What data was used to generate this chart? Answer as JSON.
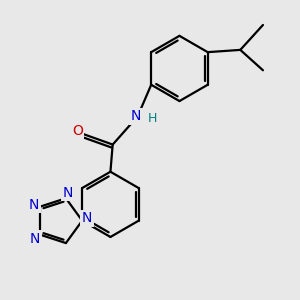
{
  "background_color": "#e8e8e8",
  "bond_color": "#000000",
  "bond_width": 1.6,
  "atom_colors": {
    "N_amide": "#0000cc",
    "N_tetrazole": "#0000cc",
    "O": "#cc0000",
    "H": "#008080",
    "C": "#000000"
  },
  "figsize": [
    3.0,
    3.0
  ],
  "dpi": 100,
  "xlim": [
    -2.8,
    3.2
  ],
  "ylim": [
    -3.5,
    3.0
  ]
}
